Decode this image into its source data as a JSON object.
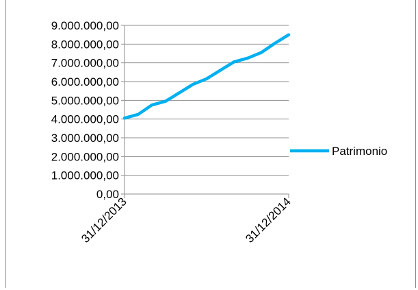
{
  "chart_data": {
    "type": "line",
    "title": "",
    "xlabel": "",
    "ylabel": "",
    "x_tick_labels": [
      "31/12/2013",
      "31/12/2014"
    ],
    "y_tick_labels": [
      "0,00",
      "1.000.000,00",
      "2.000.000,00",
      "3.000.000,00",
      "4.000.000,00",
      "5.000.000,00",
      "6.000.000,00",
      "7.000.000,00",
      "8.000.000,00",
      "9.000.000,00"
    ],
    "ylim": [
      0,
      9000000
    ],
    "grid": "horizontal",
    "legend_position": "right",
    "series": [
      {
        "name": "Patrimonio",
        "color": "#00b0f0",
        "x": [
          "31/12/2013",
          "31/01/2014",
          "28/02/2014",
          "31/03/2014",
          "30/04/2014",
          "31/05/2014",
          "30/06/2014",
          "31/07/2014",
          "31/08/2014",
          "30/09/2014",
          "31/10/2014",
          "30/11/2014",
          "31/12/2014"
        ],
        "values": [
          4050000,
          4250000,
          4750000,
          4950000,
          5400000,
          5850000,
          6150000,
          6600000,
          7050000,
          7250000,
          7550000,
          8050000,
          8500000
        ]
      }
    ]
  }
}
